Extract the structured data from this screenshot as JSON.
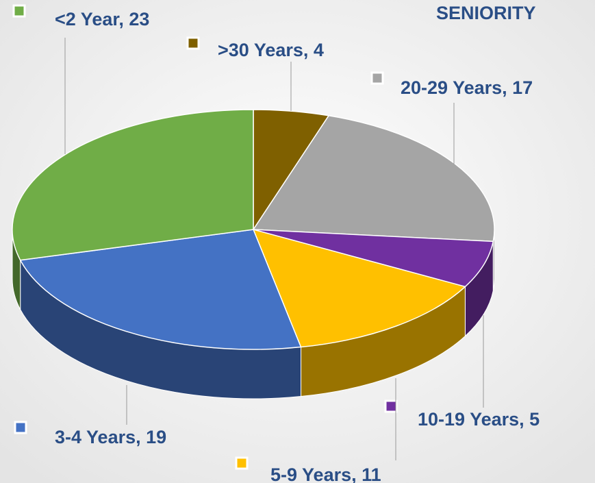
{
  "chart_data": {
    "type": "pie",
    "title": "SENIORITY",
    "categories": [
      ">30 Years",
      "20-29 Years",
      "10-19 Years",
      "5-9 Years",
      "3-4 Years",
      "<2 Year"
    ],
    "values": [
      4,
      17,
      5,
      11,
      19,
      23
    ],
    "value_labels": [
      ">30 Years, 4",
      "20-29 Years, 17",
      "10-19 Years, 5",
      "5-9 Years, 11",
      "3-4 Years, 19",
      "<2 Year, 23"
    ],
    "colors": [
      "#7f6000",
      "#a5a5a5",
      "#7030a0",
      "#ffc000",
      "#4472c4",
      "#70ad47"
    ]
  }
}
